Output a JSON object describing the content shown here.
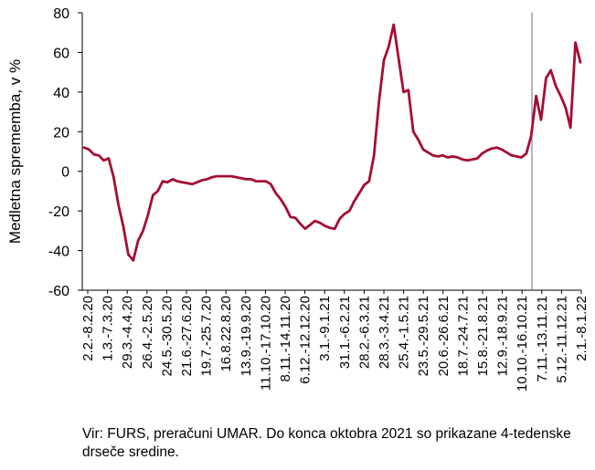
{
  "chart_data": {
    "type": "line",
    "ylabel": "Medletna sprememba, v %",
    "ylim": [
      -60,
      80
    ],
    "yticks": [
      80,
      60,
      40,
      20,
      0,
      -20,
      -40,
      -60
    ],
    "xtick_labels": [
      "2.2.-8.2.20",
      "1.3.-7.3.20",
      "29.3.-4.4.20",
      "26.4.-2.5.20",
      "24.5.-30.5.20",
      "21.6.-27.6.20",
      "19.7.-25.7.20",
      "16.8.22.8.20",
      "13.9.-19.9.20",
      "11.10.-17.10.20",
      "8.11.-14.11.20",
      "6.12.-12.12.20",
      "3.1.-9.1.21",
      "31.1.-6.2.21",
      "28.2.-6.3.21",
      "28.3.-3.4.21",
      "25.4.-1.5.21",
      "23.5.-29.5.21",
      "20.6.-26.6.21",
      "18.7.-24.7.21",
      "15.8.-21.8.21",
      "12.9.-18.9.21",
      "10.10.-16.10.21",
      "7.11.-13.11.21",
      "5.12.-11.12.21",
      "2.1.-8.1.22"
    ],
    "series": [
      {
        "color": "#a50e32",
        "values": [
          12,
          11,
          8.5,
          8,
          5.5,
          6.5,
          -3,
          -17,
          -28,
          -42,
          -45,
          -35,
          -30,
          -22,
          -12,
          -10,
          -5,
          -5.5,
          -4,
          -5,
          -5.5,
          -6,
          -6.5,
          -5.5,
          -4.5,
          -4,
          -3,
          -2.5,
          -2.5,
          -2.5,
          -2.5,
          -3,
          -3.5,
          -4,
          -4,
          -5,
          -5,
          -5,
          -6.5,
          -11,
          -14,
          -18,
          -23,
          -23.5,
          -26.5,
          -29,
          -27,
          -25,
          -26,
          -27.5,
          -28.5,
          -29,
          -24,
          -21.5,
          -20,
          -15,
          -11,
          -7,
          -5,
          8,
          35,
          56,
          63,
          74,
          57,
          40,
          41,
          20,
          16,
          11,
          9.5,
          8,
          7.5,
          8,
          7,
          7.5,
          7,
          6,
          5.5,
          6,
          6.5,
          9,
          10.5,
          11.5,
          12,
          11,
          9.5,
          8,
          7.5,
          7,
          9,
          18,
          38,
          26,
          47,
          51,
          43,
          38,
          32,
          22,
          65,
          55
        ]
      }
    ],
    "annotation_line_after_label": "10.10.-16.10.21",
    "grid": false
  },
  "note": "Vir: FURS, preračuni UMAR. Do konca oktobra 2021 so prikazane 4-tedenske drseče sredine."
}
